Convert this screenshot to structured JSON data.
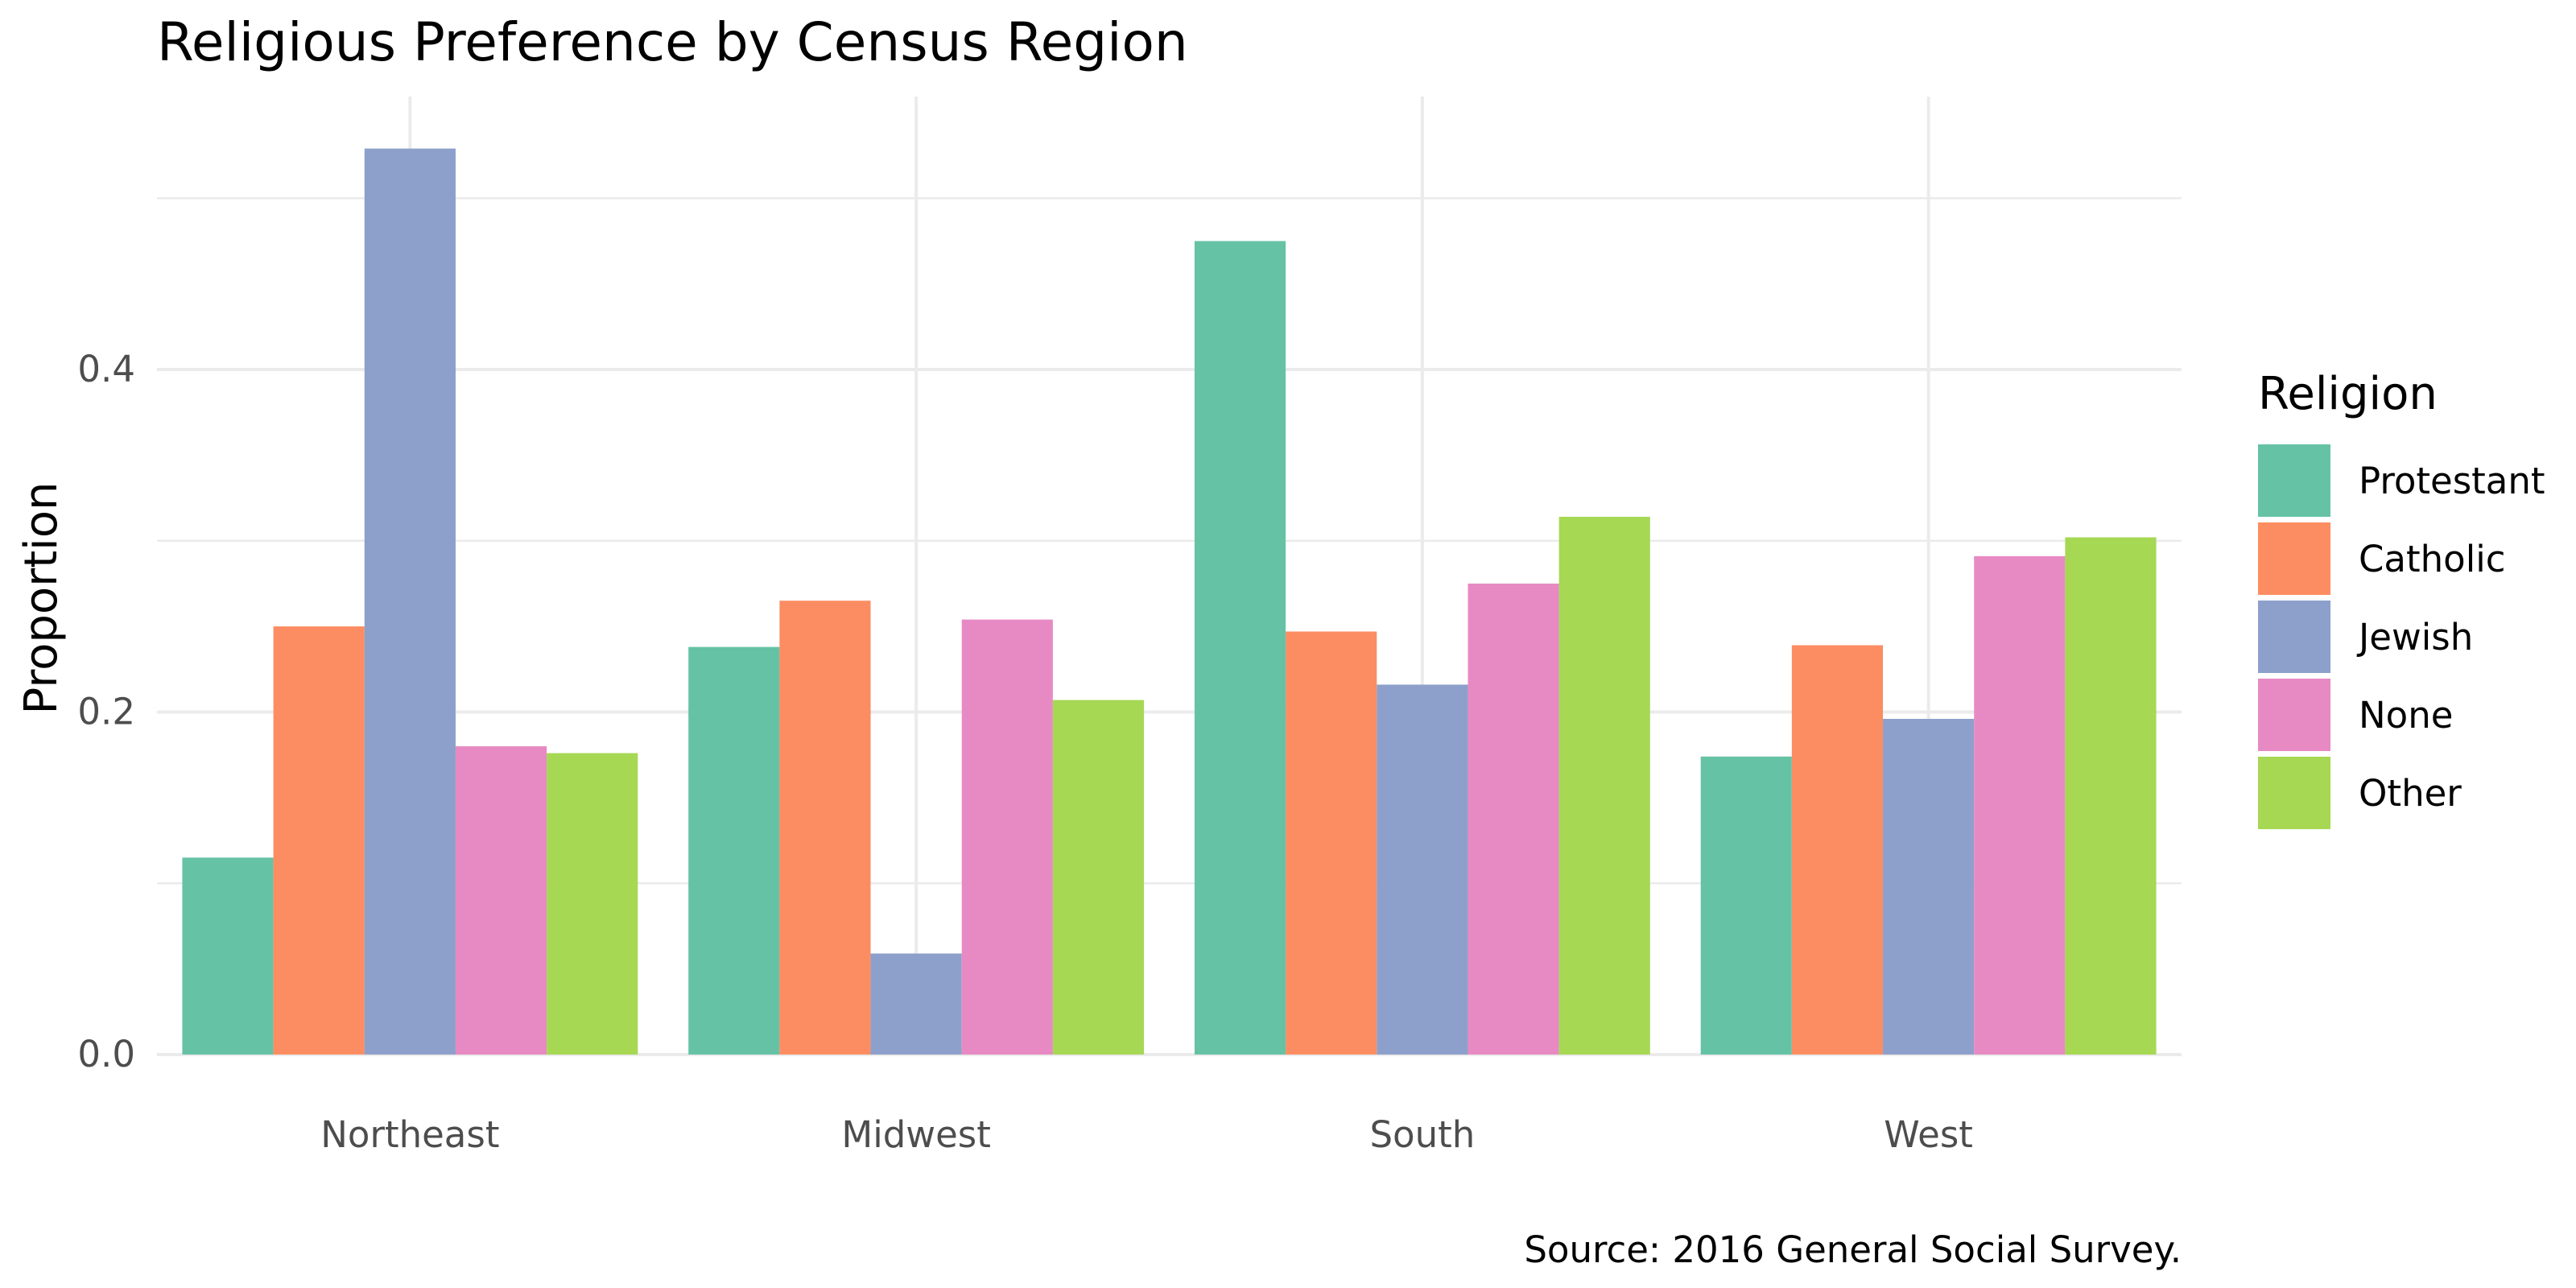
{
  "chart_data": {
    "type": "bar",
    "title": "Religious Preference by Census Region",
    "xlabel": "",
    "ylabel": "Proportion",
    "caption": "Source: 2016 General Social Survey.",
    "categories": [
      "Northeast",
      "Midwest",
      "South",
      "West"
    ],
    "ylim": [
      0,
      0.55
    ],
    "yticks": [
      "0.0",
      "0.2",
      "0.4"
    ],
    "grid": true,
    "legend": {
      "title": "Religion",
      "position": "right"
    },
    "series": [
      {
        "name": "Protestant",
        "color": "#66c2a5",
        "values": [
          0.115,
          0.238,
          0.475,
          0.174
        ]
      },
      {
        "name": "Catholic",
        "color": "#fc8d62",
        "values": [
          0.25,
          0.265,
          0.247,
          0.239
        ]
      },
      {
        "name": "Jewish",
        "color": "#8da0cb",
        "values": [
          0.529,
          0.059,
          0.216,
          0.196
        ]
      },
      {
        "name": "None",
        "color": "#e78ac3",
        "values": [
          0.18,
          0.254,
          0.275,
          0.291
        ]
      },
      {
        "name": "Other",
        "color": "#a6d854",
        "values": [
          0.176,
          0.207,
          0.314,
          0.302
        ]
      }
    ]
  }
}
